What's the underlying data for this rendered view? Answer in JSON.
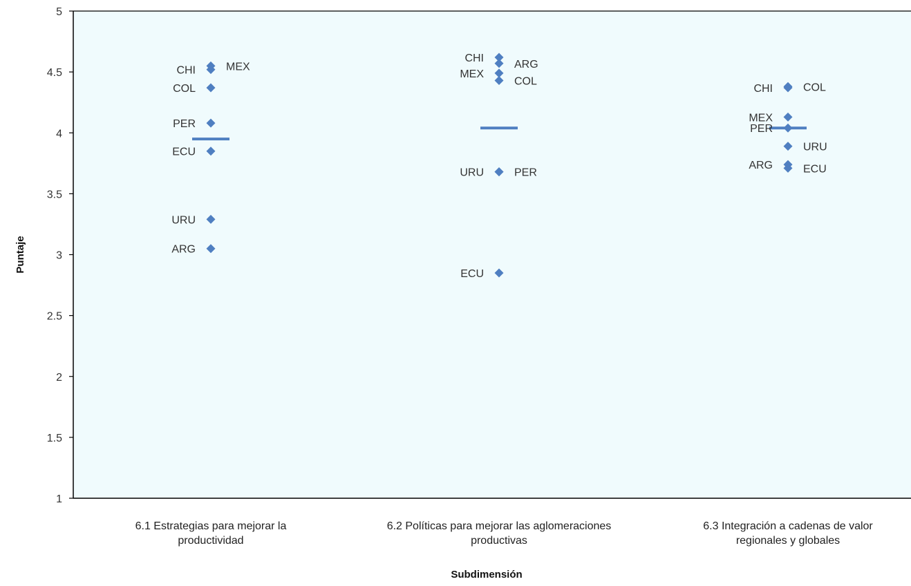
{
  "chart_data": {
    "type": "scatter",
    "xlabel": "Subdimensión",
    "ylabel": "Puntaje",
    "ylim": [
      1,
      5
    ],
    "yticks": [
      "1",
      "1.5",
      "2",
      "2.5",
      "3",
      "3.5",
      "4",
      "4.5",
      "5"
    ],
    "categories": [
      [
        "6.1 Estrategias para mejorar la",
        "productividad"
      ],
      [
        "6.2 Políticas para mejorar las aglomeraciones",
        "productivas"
      ],
      [
        "6.3 Integración a cadenas de valor",
        "regionales y globales"
      ]
    ],
    "grid": false,
    "legend": "none",
    "plot_background": "#f0fbfd",
    "marker_color": "#4f7fc1",
    "average_line_color": "#4f7fc1",
    "series": [
      {
        "category": "6.1 Estrategias para mejorar la productividad",
        "average": 3.95,
        "points": [
          {
            "label": "CHI",
            "value": 4.52,
            "side": "left"
          },
          {
            "label": "MEX",
            "value": 4.55,
            "side": "right"
          },
          {
            "label": "COL",
            "value": 4.37,
            "side": "left"
          },
          {
            "label": "PER",
            "value": 4.08,
            "side": "left"
          },
          {
            "label": "ECU",
            "value": 3.85,
            "side": "left"
          },
          {
            "label": "URU",
            "value": 3.29,
            "side": "left"
          },
          {
            "label": "ARG",
            "value": 3.05,
            "side": "left"
          }
        ]
      },
      {
        "category": "6.2 Políticas para mejorar las aglomeraciones productivas",
        "average": 4.04,
        "points": [
          {
            "label": "CHI",
            "value": 4.62,
            "side": "left"
          },
          {
            "label": "ARG",
            "value": 4.57,
            "side": "right"
          },
          {
            "label": "MEX",
            "value": 4.49,
            "side": "left"
          },
          {
            "label": "COL",
            "value": 4.43,
            "side": "right"
          },
          {
            "label": "URU",
            "value": 3.68,
            "side": "left"
          },
          {
            "label": "PER",
            "value": 3.68,
            "side": "right"
          },
          {
            "label": "ECU",
            "value": 2.85,
            "side": "left"
          }
        ]
      },
      {
        "category": "6.3 Integración a cadenas de valor regionales y globales",
        "average": 4.04,
        "points": [
          {
            "label": "CHI",
            "value": 4.37,
            "side": "left"
          },
          {
            "label": "COL",
            "value": 4.38,
            "side": "right"
          },
          {
            "label": "MEX",
            "value": 4.13,
            "side": "left"
          },
          {
            "label": "PER",
            "value": 4.04,
            "side": "left"
          },
          {
            "label": "URU",
            "value": 3.89,
            "side": "right"
          },
          {
            "label": "ARG",
            "value": 3.74,
            "side": "left"
          },
          {
            "label": "ECU",
            "value": 3.71,
            "side": "right"
          }
        ]
      }
    ]
  }
}
